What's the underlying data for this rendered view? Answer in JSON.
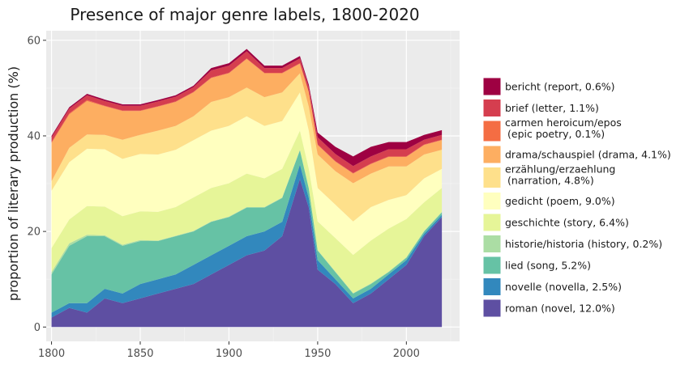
{
  "chart_data": {
    "type": "area",
    "stacked": true,
    "title": "Presence of major genre labels, 1800-2020",
    "xlabel": "",
    "ylabel": "proportion of literary production (%)",
    "xlim": [
      1797,
      2030
    ],
    "ylim": [
      -3,
      62
    ],
    "x_ticks": [
      1800,
      1850,
      1900,
      1950,
      2000
    ],
    "y_ticks": [
      0,
      20,
      40,
      60
    ],
    "grid": true,
    "panel_background": "#ebebeb",
    "legend_position": "right",
    "x": [
      1800,
      1810,
      1820,
      1830,
      1840,
      1850,
      1860,
      1870,
      1880,
      1890,
      1900,
      1910,
      1920,
      1930,
      1940,
      1945,
      1950,
      1960,
      1970,
      1980,
      1990,
      2000,
      2010,
      2020
    ],
    "series": [
      {
        "name": "roman (novel, 12.0%)",
        "color": "#5E4FA2",
        "values": [
          2,
          4,
          3,
          6,
          5,
          6,
          7,
          8,
          9,
          11,
          13,
          15,
          16,
          19,
          31,
          25,
          12,
          9,
          5,
          7,
          10,
          13,
          19,
          23
        ]
      },
      {
        "name": "novelle (novella, 2.5%)",
        "color": "#3288BD",
        "values": [
          1,
          1,
          2,
          2,
          2,
          3,
          3,
          3,
          4,
          4,
          4,
          4,
          4,
          3,
          3,
          2,
          2,
          1,
          1,
          1,
          1,
          1,
          0.5,
          0.5
        ]
      },
      {
        "name": "lied (song, 5.2%)",
        "color": "#66C2A5",
        "values": [
          8,
          12,
          14,
          11,
          10,
          9,
          8,
          8,
          7,
          7,
          6,
          6,
          5,
          5,
          3,
          2,
          2,
          1.5,
          1,
          1,
          0.5,
          0.5,
          0.5,
          0.5
        ]
      },
      {
        "name": "historie/historia (history, 0.2%)",
        "color": "#ABDDA4",
        "values": [
          0.5,
          0.5,
          0.3,
          0.2,
          0.2,
          0.2,
          0.1,
          0.1,
          0.1,
          0.1,
          0.1,
          0.1,
          0.1,
          0.1,
          0.1,
          0.1,
          0.1,
          0.1,
          0.1,
          0.1,
          0.1,
          0.1,
          0.1,
          0.1
        ]
      },
      {
        "name": "geschichte (story, 6.4%)",
        "color": "#E6F598",
        "values": [
          5,
          5,
          6,
          6,
          6,
          6,
          6,
          6,
          7,
          7,
          7,
          7,
          6,
          6,
          4,
          4,
          6,
          7,
          8,
          9,
          9,
          8,
          6,
          5
        ]
      },
      {
        "name": "gedicht (poem, 9.0%)",
        "color": "#FFFFBF",
        "values": [
          12,
          12,
          12,
          12,
          12,
          12,
          12,
          12,
          12,
          12,
          12,
          12,
          11,
          10,
          8,
          8,
          7,
          7,
          7,
          7,
          6,
          5,
          5,
          4
        ]
      },
      {
        "name": "erzählung/erzaehlung (narration, 4.8%)",
        "color": "#FEE08B",
        "values": [
          2,
          3,
          3,
          3,
          4,
          4,
          5,
          5,
          5,
          6,
          6,
          6,
          6,
          6,
          4,
          5,
          7,
          7,
          8,
          7,
          7,
          6,
          5,
          4
        ]
      },
      {
        "name": "drama/schauspiel (drama, 4.1%)",
        "color": "#FDAE61",
        "values": [
          8,
          7,
          7,
          6,
          6,
          5,
          5,
          5,
          5,
          5,
          5,
          6,
          5,
          4,
          2,
          3,
          2,
          2,
          2,
          2,
          2,
          2,
          2,
          2
        ]
      },
      {
        "name": "carmen heroicum/epos (epic poetry, 0.1%)",
        "color": "#F46D43",
        "values": [
          0.2,
          0.2,
          0.2,
          0.1,
          0.1,
          0.1,
          0.1,
          0.1,
          0.1,
          0.1,
          0.1,
          0.1,
          0.1,
          0.1,
          0.1,
          0.1,
          0.1,
          0.1,
          0.1,
          0.1,
          0.1,
          0.1,
          0.1,
          0.1
        ]
      },
      {
        "name": "brief (letter, 1.1%)",
        "color": "#D53E4F",
        "values": [
          1,
          1,
          1,
          1,
          1,
          1,
          1,
          1,
          1,
          1.5,
          1.5,
          1.5,
          1,
          1,
          1,
          1,
          1.5,
          1.5,
          1.5,
          1.5,
          1.5,
          1.5,
          1,
          1
        ]
      },
      {
        "name": "bericht (report, 0.6%)",
        "color": "#9E0142",
        "values": [
          0.3,
          0.3,
          0.3,
          0.3,
          0.3,
          0.3,
          0.3,
          0.3,
          0.3,
          0.5,
          0.5,
          0.5,
          0.5,
          0.5,
          0.5,
          0.5,
          1,
          1.5,
          2,
          2,
          1.5,
          1.5,
          1,
          1
        ]
      }
    ],
    "legend_order": [
      "bericht (report, 0.6%)",
      "brief (letter, 1.1%)",
      "carmen heroicum/epos (epic poetry, 0.1%)",
      "drama/schauspiel (drama, 4.1%)",
      "erzählung/erzaehlung (narration, 4.8%)",
      "gedicht (poem, 9.0%)",
      "geschichte (story, 6.4%)",
      "historie/historia (history, 0.2%)",
      "lied (song, 5.2%)",
      "novelle (novella, 2.5%)",
      "roman (novel, 12.0%)"
    ]
  }
}
